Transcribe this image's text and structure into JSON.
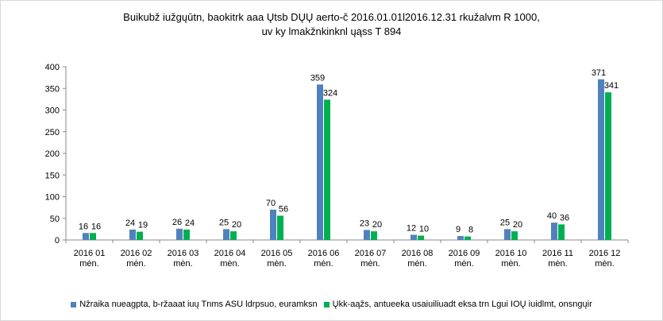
{
  "chart_data": {
    "type": "bar",
    "title": "Buikubž iužgųūtn, baokitrk aaa Ųtsb DŲŲ aerto-č 2016.01.01l2016.12.31  rkužalvm R 1000,",
    "subtitle": "uv ky lmakžnkinknl ųąss T 894",
    "categories": [
      [
        "2016 01",
        "mėn."
      ],
      [
        "2016 02",
        "mėn."
      ],
      [
        "2016 03",
        "mėn."
      ],
      [
        "2016 04",
        "mėn."
      ],
      [
        "2016 05",
        "mėn."
      ],
      [
        "2016 06",
        "mėn."
      ],
      [
        "2016 07",
        "mėn."
      ],
      [
        "2016 08",
        "mėn."
      ],
      [
        "2016 09",
        "mėn."
      ],
      [
        "2016 10",
        "mėn."
      ],
      [
        "2016 11",
        "mėn."
      ],
      [
        "2016 12",
        "mėn."
      ]
    ],
    "series": [
      {
        "name": "Nžraika nueagpta, b-ržaaat iuų Tnms ASU ldrpsuo, euramksn",
        "color": "#4f81bd",
        "values": [
          16,
          24,
          26,
          25,
          70,
          359,
          23,
          12,
          9,
          25,
          40,
          371
        ],
        "labels": [
          "16",
          "24",
          "26",
          "25",
          "70",
          "359",
          "23",
          "12",
          "9",
          "25",
          "40",
          "371"
        ]
      },
      {
        "name": "Ųkk-aąžs, antueeka usaiuiliuadt eksa trn Lgui IOŲ iuidlmt, onsngųir",
        "color": "#00b050",
        "values": [
          16,
          19,
          24,
          20,
          56,
          324,
          20,
          10,
          8,
          20,
          36,
          341
        ],
        "labels": [
          "16",
          "19",
          "24",
          "20",
          "56",
          "324",
          "20",
          "10",
          "8",
          "20",
          "36",
          "341"
        ]
      }
    ],
    "ylim": [
      0,
      400
    ],
    "yticks": [
      "0",
      "50",
      "100",
      "150",
      "200",
      "250",
      "300",
      "350",
      "400"
    ],
    "xlabel": "",
    "ylabel": "",
    "grid": false,
    "legend_position": "bottom"
  }
}
